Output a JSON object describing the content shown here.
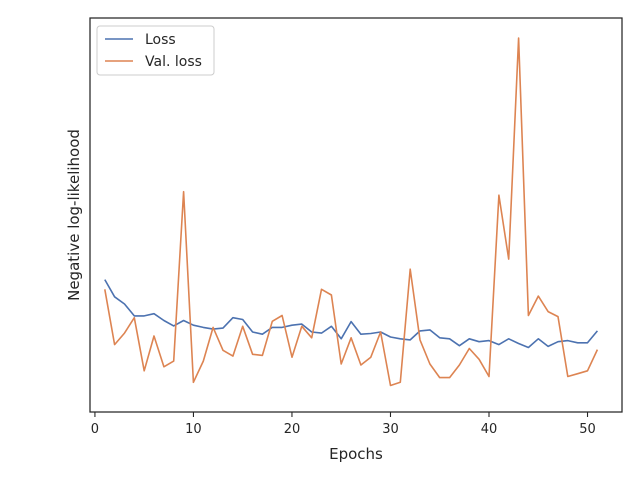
{
  "chart_data": {
    "type": "line",
    "title": "",
    "xlabel": "Epochs",
    "ylabel": "Negative log-likelihood",
    "xlim": [
      -0.5,
      53.5
    ],
    "ylim": [
      0,
      100
    ],
    "xticks": [
      0,
      10,
      20,
      30,
      40,
      50
    ],
    "xtick_labels": [
      "0",
      "10",
      "20",
      "30",
      "40",
      "50"
    ],
    "yticks": [],
    "grid": false,
    "legend_position": "upper left",
    "series": [
      {
        "name": "Loss",
        "color": "#4c72b0",
        "x": [
          1,
          2,
          3,
          4,
          5,
          6,
          7,
          8,
          9,
          10,
          11,
          12,
          13,
          14,
          15,
          16,
          17,
          18,
          19,
          20,
          21,
          22,
          23,
          24,
          25,
          26,
          27,
          28,
          29,
          30,
          31,
          32,
          33,
          34,
          35,
          36,
          37,
          38,
          39,
          40,
          41,
          42,
          43,
          44,
          45,
          46,
          47,
          48,
          49,
          50,
          51
        ],
        "y": [
          32.7,
          27.9,
          25.9,
          22.6,
          22.6,
          23.2,
          21.3,
          19.8,
          21.3,
          20.0,
          19.4,
          18.9,
          19.2,
          22.1,
          21.6,
          18.1,
          17.5,
          19.4,
          19.4,
          20.0,
          20.3,
          18.1,
          17.8,
          19.7,
          16.2,
          21.0,
          17.5,
          17.7,
          18.1,
          16.7,
          16.2,
          15.9,
          18.4,
          18.7,
          16.5,
          16.2,
          14.3,
          16.2,
          15.4,
          15.7,
          14.6,
          16.2,
          14.9,
          13.8,
          16.2,
          14.1,
          15.4,
          15.7,
          15.1,
          15.1,
          18.4
        ]
      },
      {
        "name": "Val. loss",
        "color": "#dd8452",
        "x": [
          1,
          2,
          3,
          4,
          5,
          6,
          7,
          8,
          9,
          10,
          11,
          12,
          13,
          14,
          15,
          16,
          17,
          18,
          19,
          20,
          21,
          22,
          23,
          24,
          25,
          26,
          27,
          28,
          29,
          30,
          31,
          32,
          33,
          34,
          35,
          36,
          37,
          38,
          39,
          40,
          41,
          42,
          43,
          44,
          45,
          46,
          47,
          48,
          49,
          50,
          51
        ],
        "y": [
          30.0,
          14.6,
          17.8,
          22.1,
          7.3,
          17.0,
          8.4,
          10.0,
          57.2,
          4.1,
          10.0,
          19.4,
          13.0,
          11.4,
          19.7,
          11.9,
          11.6,
          21.1,
          22.7,
          11.1,
          19.7,
          16.5,
          30.0,
          28.4,
          9.2,
          16.5,
          8.9,
          11.1,
          18.1,
          3.2,
          4.1,
          35.6,
          15.9,
          9.2,
          5.4,
          5.4,
          8.9,
          13.5,
          10.5,
          5.7,
          56.2,
          38.4,
          100.0,
          22.7,
          28.1,
          23.8,
          22.4,
          5.7,
          6.5,
          7.3,
          13.2
        ]
      }
    ]
  }
}
